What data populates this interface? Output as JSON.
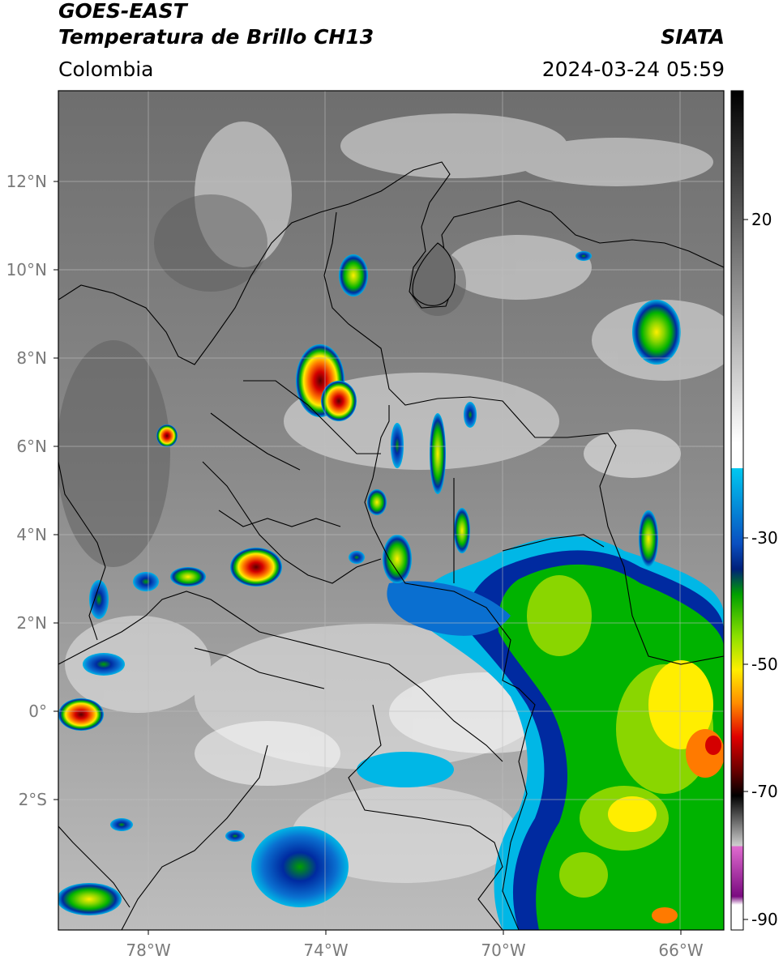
{
  "header": {
    "satellite": "GOES-EAST",
    "product": "Temperatura de Brillo CH13",
    "organization": "SIATA",
    "region": "Colombia",
    "timestamp": "2024-03-24 05:59"
  },
  "map": {
    "lat_labels": [
      "12°N",
      "10°N",
      "8°N",
      "6°N",
      "4°N",
      "2°N",
      "0°",
      "2°S"
    ],
    "lon_labels": [
      "78°W",
      "74°W",
      "70°W",
      "66°W"
    ]
  },
  "colorbar": {
    "tick_labels": [
      "20",
      "-30",
      "-50",
      "-70",
      "-90"
    ],
    "colors": [
      "#000000",
      "#ffffff",
      "#00b7e6",
      "#002aa0",
      "#00b300",
      "#ffee00",
      "#ff6a00",
      "#d40000",
      "#7d0000",
      "#b8b8b8",
      "#e070d0",
      "#901090"
    ]
  }
}
